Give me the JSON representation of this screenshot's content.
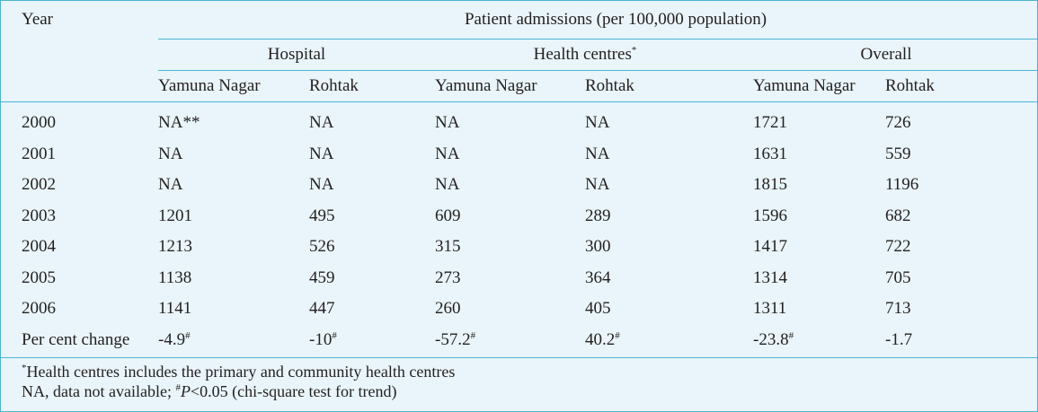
{
  "table": {
    "year_label": "Year",
    "top_header": "Patient admissions (per 100,000 population)",
    "groups": [
      {
        "label": "Hospital",
        "marker": ""
      },
      {
        "label": "Health centres",
        "marker": "*"
      },
      {
        "label": "Overall",
        "marker": ""
      }
    ],
    "sub_headers": [
      "Yamuna Nagar",
      "Rohtak",
      "Yamuna Nagar",
      "Rohtak",
      "Yamuna Nagar",
      "Rohtak"
    ],
    "rows": [
      {
        "year": "2000",
        "cells": [
          {
            "v": "NA**",
            "m": ""
          },
          {
            "v": "NA",
            "m": ""
          },
          {
            "v": "NA",
            "m": ""
          },
          {
            "v": "NA",
            "m": ""
          },
          {
            "v": "1721",
            "m": ""
          },
          {
            "v": "726",
            "m": ""
          }
        ]
      },
      {
        "year": "2001",
        "cells": [
          {
            "v": "NA",
            "m": ""
          },
          {
            "v": "NA",
            "m": ""
          },
          {
            "v": "NA",
            "m": ""
          },
          {
            "v": "NA",
            "m": ""
          },
          {
            "v": "1631",
            "m": ""
          },
          {
            "v": "559",
            "m": ""
          }
        ]
      },
      {
        "year": "2002",
        "cells": [
          {
            "v": "NA",
            "m": ""
          },
          {
            "v": "NA",
            "m": ""
          },
          {
            "v": "NA",
            "m": ""
          },
          {
            "v": "NA",
            "m": ""
          },
          {
            "v": "1815",
            "m": ""
          },
          {
            "v": "1196",
            "m": ""
          }
        ]
      },
      {
        "year": "2003",
        "cells": [
          {
            "v": "1201",
            "m": ""
          },
          {
            "v": "495",
            "m": ""
          },
          {
            "v": "609",
            "m": ""
          },
          {
            "v": "289",
            "m": ""
          },
          {
            "v": "1596",
            "m": ""
          },
          {
            "v": "682",
            "m": ""
          }
        ]
      },
      {
        "year": "2004",
        "cells": [
          {
            "v": "1213",
            "m": ""
          },
          {
            "v": "526",
            "m": ""
          },
          {
            "v": "315",
            "m": ""
          },
          {
            "v": "300",
            "m": ""
          },
          {
            "v": "1417",
            "m": ""
          },
          {
            "v": "722",
            "m": ""
          }
        ]
      },
      {
        "year": "2005",
        "cells": [
          {
            "v": "1138",
            "m": ""
          },
          {
            "v": "459",
            "m": ""
          },
          {
            "v": "273",
            "m": ""
          },
          {
            "v": "364",
            "m": ""
          },
          {
            "v": "1314",
            "m": ""
          },
          {
            "v": "705",
            "m": ""
          }
        ]
      },
      {
        "year": "2006",
        "cells": [
          {
            "v": "1141",
            "m": ""
          },
          {
            "v": "447",
            "m": ""
          },
          {
            "v": "260",
            "m": ""
          },
          {
            "v": "405",
            "m": ""
          },
          {
            "v": "1311",
            "m": ""
          },
          {
            "v": "713",
            "m": ""
          }
        ]
      },
      {
        "year": "Per cent change",
        "cells": [
          {
            "v": "-4.9",
            "m": "#"
          },
          {
            "v": "-10",
            "m": "#"
          },
          {
            "v": "-57.2",
            "m": "#"
          },
          {
            "v": "40.2",
            "m": "#"
          },
          {
            "v": "-23.8",
            "m": "#"
          },
          {
            "v": "-1.7",
            "m": ""
          }
        ]
      }
    ]
  },
  "footnotes": {
    "line1_marker": "*",
    "line1_text": "Health centres includes the primary and community health centres",
    "line2_part1": "NA, data not available; ",
    "line2_marker": "#",
    "line2_p": "P",
    "line2_part2": "<0.05 (chi-square test for trend)"
  },
  "colors": {
    "background": "#e9f5fa",
    "rule": "#4bb4d3",
    "text": "#231f20"
  }
}
